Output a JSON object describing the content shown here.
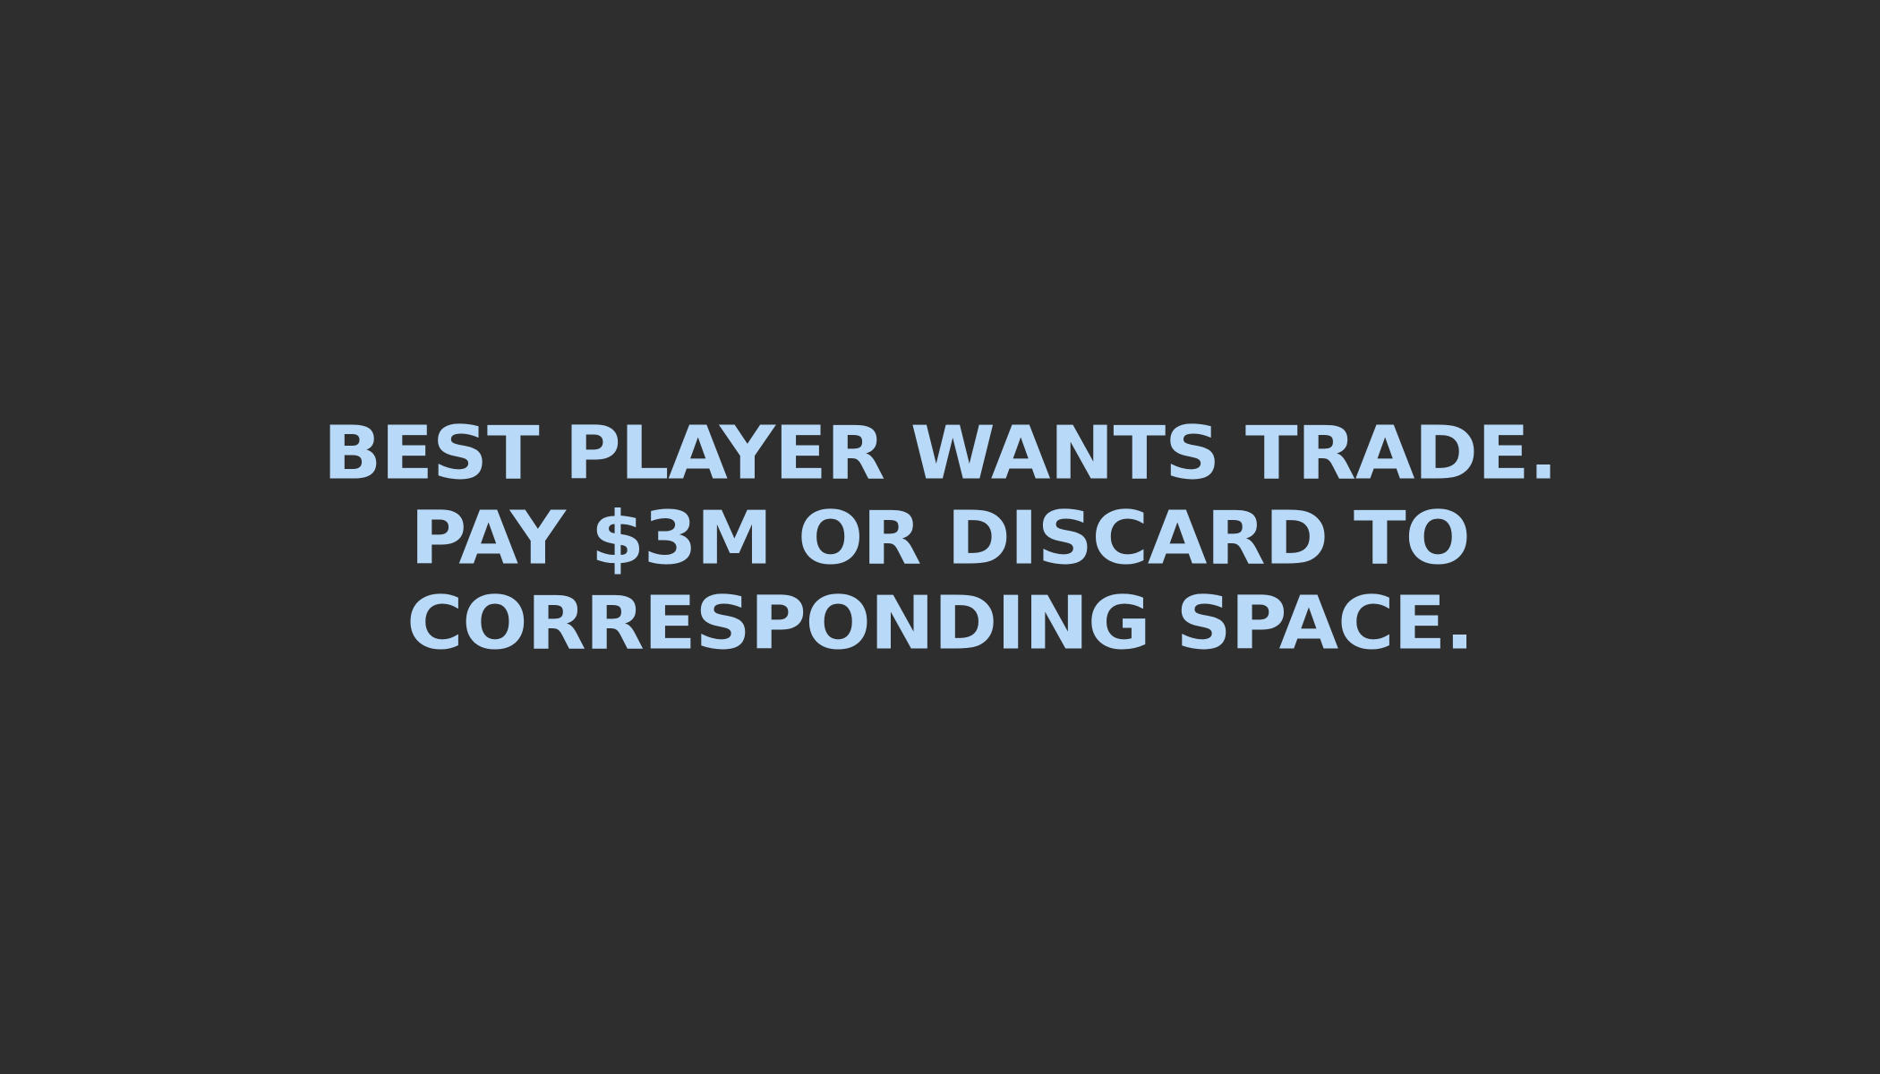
{
  "background_color": "#2e2e2e",
  "text_color": "#b8d9f8",
  "card": {
    "lines": [
      "BEST PLAYER WANTS TRADE.",
      "PAY $3M OR DISCARD TO",
      "CORRESPONDING SPACE."
    ]
  }
}
